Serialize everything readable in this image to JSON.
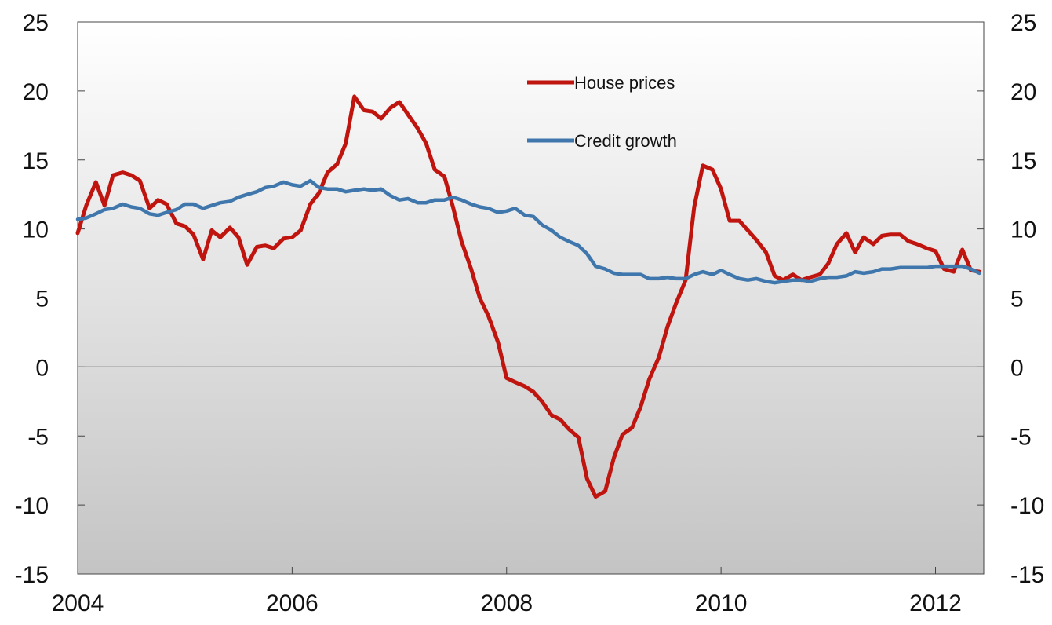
{
  "chart_data": {
    "type": "line",
    "title": "",
    "xlabel": "",
    "ylabel": "",
    "xlim": [
      2004,
      2012.45
    ],
    "ylim": [
      -15,
      25
    ],
    "y_ticks": [
      "-15",
      "-10",
      "-5",
      "0",
      "5",
      "10",
      "15",
      "20",
      "25"
    ],
    "x_ticks": [
      "2004",
      "2006",
      "2008",
      "2010",
      "2012"
    ],
    "grid": false,
    "dual_y_axis_same_scale": true,
    "legend_position": "top-center",
    "background": "vertical gradient, white at top to grey at bottom",
    "series": [
      {
        "name": "House prices",
        "color": "#c0140f",
        "x": [
          2004.0,
          2004.08,
          2004.17,
          2004.25,
          2004.33,
          2004.42,
          2004.5,
          2004.58,
          2004.67,
          2004.75,
          2004.83,
          2004.92,
          2005.0,
          2005.08,
          2005.17,
          2005.25,
          2005.33,
          2005.42,
          2005.5,
          2005.58,
          2005.67,
          2005.75,
          2005.83,
          2005.92,
          2006.0,
          2006.08,
          2006.17,
          2006.25,
          2006.33,
          2006.42,
          2006.5,
          2006.58,
          2006.67,
          2006.75,
          2006.83,
          2006.92,
          2007.0,
          2007.08,
          2007.17,
          2007.25,
          2007.33,
          2007.42,
          2007.5,
          2007.58,
          2007.67,
          2007.75,
          2007.83,
          2007.92,
          2008.0,
          2008.08,
          2008.17,
          2008.25,
          2008.33,
          2008.42,
          2008.5,
          2008.58,
          2008.67,
          2008.75,
          2008.83,
          2008.92,
          2009.0,
          2009.08,
          2009.17,
          2009.25,
          2009.33,
          2009.42,
          2009.5,
          2009.58,
          2009.67,
          2009.75,
          2009.83,
          2009.92,
          2010.0,
          2010.08,
          2010.17,
          2010.25,
          2010.33,
          2010.42,
          2010.5,
          2010.58,
          2010.67,
          2010.75,
          2010.83,
          2010.92,
          2011.0,
          2011.08,
          2011.17,
          2011.25,
          2011.33,
          2011.42,
          2011.5,
          2011.58,
          2011.67,
          2011.75,
          2011.83,
          2011.92,
          2012.0,
          2012.08,
          2012.17,
          2012.25,
          2012.33,
          2012.41
        ],
        "values": [
          9.7,
          11.7,
          13.4,
          11.7,
          13.9,
          14.1,
          13.9,
          13.5,
          11.5,
          12.1,
          11.8,
          10.4,
          10.2,
          9.6,
          7.8,
          9.9,
          9.4,
          10.1,
          9.4,
          7.4,
          8.7,
          8.8,
          8.6,
          9.3,
          9.4,
          9.9,
          11.8,
          12.6,
          14.1,
          14.7,
          16.2,
          19.6,
          18.6,
          18.5,
          18.0,
          18.8,
          19.2,
          18.3,
          17.3,
          16.2,
          14.3,
          13.8,
          11.6,
          9.1,
          7.1,
          5.0,
          3.7,
          1.8,
          -0.8,
          -1.1,
          -1.4,
          -1.8,
          -2.5,
          -3.5,
          -3.8,
          -4.5,
          -5.1,
          -8.1,
          -9.4,
          -9.0,
          -6.6,
          -4.9,
          -4.4,
          -2.9,
          -0.9,
          0.7,
          2.9,
          4.6,
          6.3,
          11.6,
          14.6,
          14.3,
          12.9,
          10.6,
          10.6,
          9.9,
          9.2,
          8.3,
          6.6,
          6.3,
          6.7,
          6.3,
          6.5,
          6.7,
          7.5,
          8.9,
          9.7,
          8.3,
          9.4,
          8.9,
          9.5,
          9.6,
          9.6,
          9.1,
          8.9,
          8.6,
          8.4,
          7.1,
          6.9,
          8.5,
          7.0,
          6.9
        ]
      },
      {
        "name": "Credit growth",
        "color": "#3f77ad",
        "x": [
          2004.0,
          2004.08,
          2004.17,
          2004.25,
          2004.33,
          2004.42,
          2004.5,
          2004.58,
          2004.67,
          2004.75,
          2004.83,
          2004.92,
          2005.0,
          2005.08,
          2005.17,
          2005.25,
          2005.33,
          2005.42,
          2005.5,
          2005.58,
          2005.67,
          2005.75,
          2005.83,
          2005.92,
          2006.0,
          2006.08,
          2006.17,
          2006.25,
          2006.33,
          2006.42,
          2006.5,
          2006.58,
          2006.67,
          2006.75,
          2006.83,
          2006.92,
          2007.0,
          2007.08,
          2007.17,
          2007.25,
          2007.33,
          2007.42,
          2007.5,
          2007.58,
          2007.67,
          2007.75,
          2007.83,
          2007.92,
          2008.0,
          2008.08,
          2008.17,
          2008.25,
          2008.33,
          2008.42,
          2008.5,
          2008.58,
          2008.67,
          2008.75,
          2008.83,
          2008.92,
          2009.0,
          2009.08,
          2009.17,
          2009.25,
          2009.33,
          2009.42,
          2009.5,
          2009.58,
          2009.67,
          2009.75,
          2009.83,
          2009.92,
          2010.0,
          2010.08,
          2010.17,
          2010.25,
          2010.33,
          2010.42,
          2010.5,
          2010.58,
          2010.67,
          2010.75,
          2010.83,
          2010.92,
          2011.0,
          2011.08,
          2011.17,
          2011.25,
          2011.33,
          2011.42,
          2011.5,
          2011.58,
          2011.67,
          2011.75,
          2011.83,
          2011.92,
          2012.0,
          2012.08,
          2012.17,
          2012.25,
          2012.33,
          2012.41
        ],
        "values": [
          10.7,
          10.8,
          11.1,
          11.4,
          11.5,
          11.8,
          11.6,
          11.5,
          11.1,
          11.0,
          11.2,
          11.4,
          11.8,
          11.8,
          11.5,
          11.7,
          11.9,
          12.0,
          12.3,
          12.5,
          12.7,
          13.0,
          13.1,
          13.4,
          13.2,
          13.1,
          13.5,
          13.0,
          12.9,
          12.9,
          12.7,
          12.8,
          12.9,
          12.8,
          12.9,
          12.4,
          12.1,
          12.2,
          11.9,
          11.9,
          12.1,
          12.1,
          12.3,
          12.1,
          11.8,
          11.6,
          11.5,
          11.2,
          11.3,
          11.5,
          11.0,
          10.9,
          10.3,
          9.9,
          9.4,
          9.1,
          8.8,
          8.2,
          7.3,
          7.1,
          6.8,
          6.7,
          6.7,
          6.7,
          6.4,
          6.4,
          6.5,
          6.4,
          6.4,
          6.7,
          6.9,
          6.7,
          7.0,
          6.7,
          6.4,
          6.3,
          6.4,
          6.2,
          6.1,
          6.2,
          6.3,
          6.3,
          6.2,
          6.4,
          6.5,
          6.5,
          6.6,
          6.9,
          6.8,
          6.9,
          7.1,
          7.1,
          7.2,
          7.2,
          7.2,
          7.2,
          7.3,
          7.3,
          7.3,
          7.3,
          7.1,
          6.8
        ]
      }
    ]
  }
}
